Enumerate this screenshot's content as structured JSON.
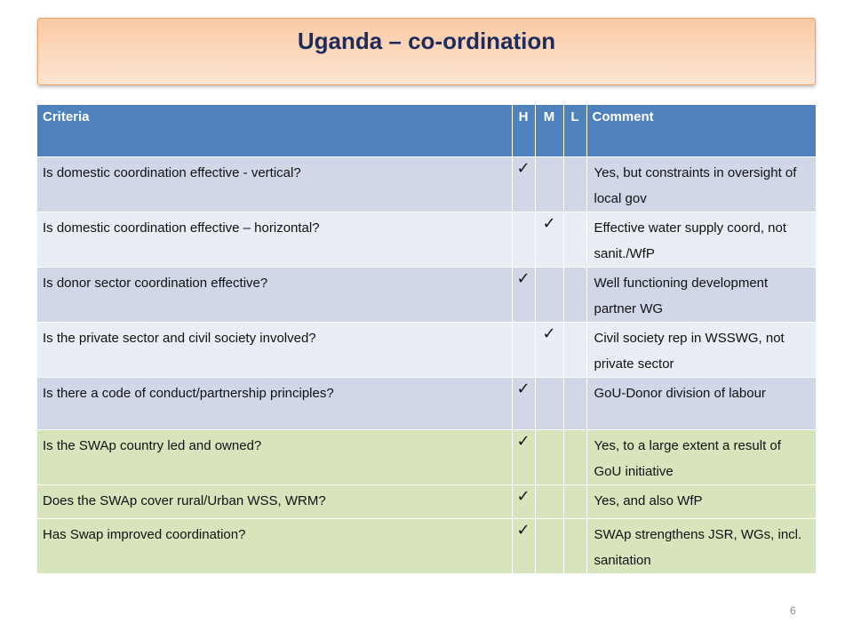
{
  "slide": {
    "title": "Uganda – co-ordination",
    "page_number": "6"
  },
  "table": {
    "headers": {
      "criteria": "Criteria",
      "h": "H",
      "m": "M",
      "l": "L",
      "comment": "Comment"
    },
    "check_mark": "✓",
    "rows": [
      {
        "criteria": "Is domestic coordination effective - vertical?",
        "rating": "H",
        "comment": "Yes, but constraints in oversight of local gov"
      },
      {
        "criteria": "Is domestic coordination effective – horizontal?",
        "rating": "M",
        "comment": "Effective water supply coord, not sanit./WfP"
      },
      {
        "criteria": "Is donor sector coordination effective?",
        "rating": "H",
        "comment": "Well functioning development partner WG"
      },
      {
        "criteria": "Is the private sector and civil society involved?",
        "rating": "M",
        "comment": "Civil society rep in WSSWG, not private sector"
      },
      {
        "criteria": "Is there a code of conduct/partnership principles?",
        "rating": "H",
        "comment": "GoU-Donor division of labour"
      },
      {
        "criteria": "Is the SWAp  country led and owned?",
        "rating": "H",
        "comment": "Yes, to a large extent a result of GoU initiative"
      },
      {
        "criteria": "Does the SWAp cover rural/Urban WSS, WRM?",
        "rating": "H",
        "comment": "Yes, and also WfP"
      },
      {
        "criteria": "Has Swap improved coordination?",
        "rating": "H",
        "comment": "SWAp strengthens JSR, WGs, incl. sanitation"
      }
    ]
  },
  "colors": {
    "header_bg": "#4f81bd",
    "row_blue_dark": "#d0d8e8",
    "row_blue_light": "#e9edf4",
    "row_green": "#d8e4bc",
    "title_text": "#1f2b5c"
  }
}
